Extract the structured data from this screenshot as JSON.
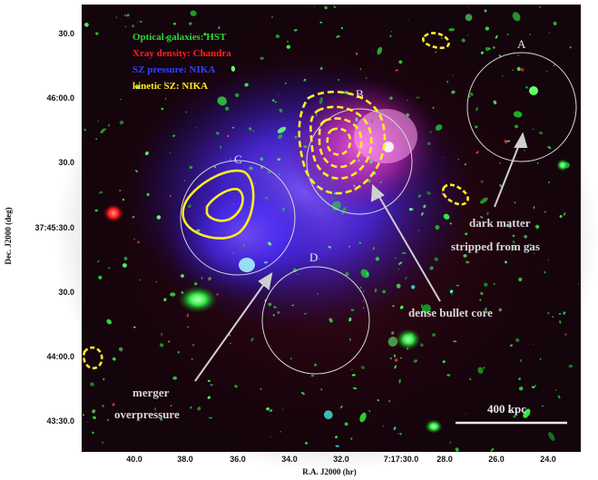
{
  "legend": {
    "optical": "Optical galaxies: HST",
    "xray": "Xray density: Chandra",
    "sz": "SZ pressure: NIKA",
    "ksz": "kinetic SZ: NIKA"
  },
  "regions": [
    "A",
    "B",
    "C",
    "D"
  ],
  "annotations": {
    "dm_line1": "dark matter",
    "dm_line2": "stripped from gas",
    "bullet": "dense bullet core",
    "merger_line1": "merger",
    "merger_line2": "overpressure"
  },
  "scale_bar": "400 kpc",
  "axes": {
    "ylabel": "Dec. J2000 (deg)",
    "xlabel": "R.A. J2000 (hr)",
    "yticks": [
      "30.0",
      "46:00.0",
      "30.0",
      "37:45:30.0",
      "30.0",
      "44:00.0",
      "43:30.0"
    ],
    "xticks": [
      "40.0",
      "38.0",
      "36.0",
      "34.0",
      "32.0",
      "7:17:30.0",
      "28.0",
      "26.0",
      "24.0"
    ]
  },
  "colors": {
    "optical": "#22dd33",
    "xray": "#ff2222",
    "sz": "#3344ff",
    "ksz": "#ffee22"
  }
}
